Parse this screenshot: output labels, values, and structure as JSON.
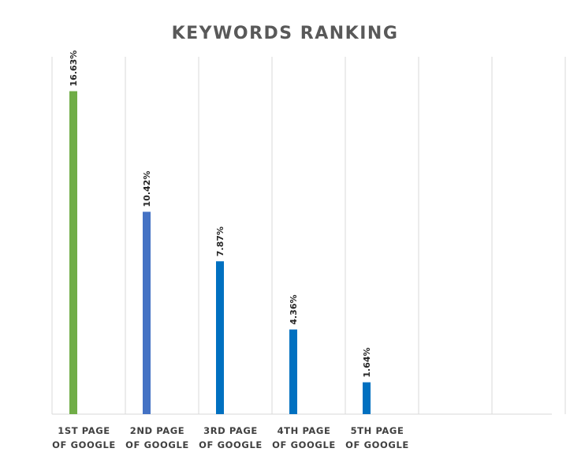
{
  "chart_data": {
    "type": "bar",
    "title": "KEYWORDS RANKING",
    "categories": [
      [
        "1ST PAGE",
        "OF GOOGLE"
      ],
      [
        "2ND PAGE",
        "OF GOOGLE"
      ],
      [
        "3RD PAGE",
        "OF GOOGLE"
      ],
      [
        "4TH PAGE",
        "OF GOOGLE"
      ],
      [
        "5TH PAGE",
        "OF GOOGLE"
      ],
      [
        "",
        ""
      ],
      [
        "",
        ""
      ]
    ],
    "values": [
      16.63,
      10.42,
      7.87,
      4.36,
      1.64,
      null,
      null
    ],
    "data_labels": [
      "16.63%",
      "10.42%",
      "7.87%",
      "4.36%",
      "1.64%",
      "",
      ""
    ],
    "bar_colors": [
      "#70ad47",
      "#4472c4",
      "#0070c0",
      "#0070c0",
      "#0070c0",
      "#0070c0",
      "#0070c0"
    ],
    "ylim": [
      0,
      18.4
    ],
    "xlabel": "",
    "ylabel": "",
    "grid": "vertical",
    "legend": "none"
  }
}
